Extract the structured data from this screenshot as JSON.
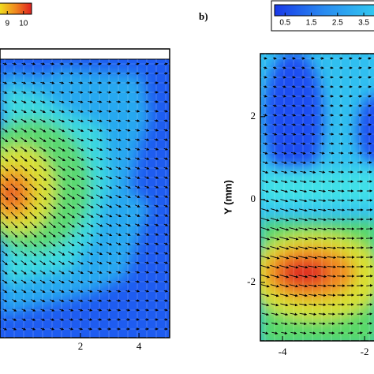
{
  "chart_data": [
    {
      "type": "contour",
      "colorbar": {
        "lim": [
          8.5,
          10.5
        ],
        "ticks": [
          9,
          10
        ]
      },
      "xlim": [
        -0.75,
        5.05
      ],
      "xticks": [
        2,
        4
      ]
    },
    {
      "type": "contour",
      "panel_label": "b)",
      "ylabel": "Y (mm)",
      "colorbar": {
        "lim": [
          0.1,
          3.95
        ],
        "ticks": [
          0.5,
          1.5,
          2.5,
          3.5
        ]
      },
      "xlim": [
        -4.54,
        -1.77
      ],
      "xticks": [
        -4,
        -2
      ],
      "ylim": [
        -3.41,
        3.52
      ],
      "yticks": [
        2,
        0,
        -2
      ]
    }
  ]
}
